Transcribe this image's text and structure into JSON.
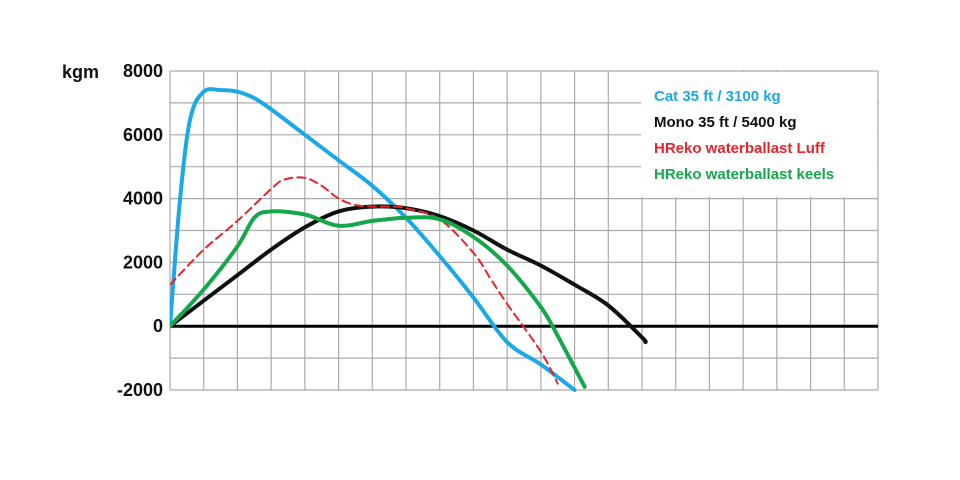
{
  "chart_data": {
    "type": "line",
    "title": "",
    "xlabel": "",
    "ylabel": "kgm",
    "ylim": [
      -2000,
      8000
    ],
    "yticks": [
      8000,
      6000,
      4000,
      2000,
      0,
      -2000
    ],
    "xlim": [
      0,
      21
    ],
    "grid": true,
    "legend_placement": "top-right",
    "series": [
      {
        "name": "Cat 35 ft / 3100 kg",
        "color": "#1aa9e6",
        "dash": false,
        "x": [
          0,
          0.3,
          0.6,
          1,
          1.5,
          2,
          2.5,
          3,
          4,
          5,
          6,
          7,
          8,
          9,
          10,
          11,
          12
        ],
        "y": [
          0,
          4000,
          6500,
          7350,
          7400,
          7350,
          7150,
          6800,
          6000,
          5200,
          4400,
          3400,
          2200,
          900,
          -500,
          -1200,
          -2000
        ]
      },
      {
        "name": "Mono 35 ft / 5400 kg",
        "color": "#111111",
        "dash": false,
        "x": [
          0,
          1,
          2,
          3,
          4,
          5,
          6,
          7,
          8,
          9,
          10,
          11,
          12,
          13,
          14,
          14.1
        ],
        "y": [
          0,
          800,
          1600,
          2400,
          3100,
          3600,
          3750,
          3700,
          3450,
          3000,
          2400,
          1900,
          1300,
          650,
          -350,
          -500
        ]
      },
      {
        "name": "HReko waterballast Luff",
        "color": "#e8242b",
        "dash": true,
        "x": [
          0,
          1,
          2,
          3,
          3.4,
          4,
          4.5,
          5,
          5.5,
          6,
          6.5,
          7,
          8,
          9,
          9.5,
          10,
          11,
          11.5
        ],
        "y": [
          1300,
          2400,
          3300,
          4300,
          4600,
          4650,
          4400,
          4000,
          3800,
          3750,
          3750,
          3700,
          3350,
          2300,
          1500,
          700,
          -800,
          -1800
        ]
      },
      {
        "name": "HReko waterballast keels",
        "color": "#14a84b",
        "dash": false,
        "x": [
          0,
          1,
          2,
          2.5,
          3,
          4,
          5,
          6,
          7,
          8,
          9,
          10,
          11,
          11.5,
          12,
          12.3
        ],
        "y": [
          0,
          1150,
          2500,
          3400,
          3600,
          3500,
          3150,
          3300,
          3400,
          3350,
          2800,
          1900,
          600,
          -300,
          -1300,
          -1900
        ]
      }
    ]
  },
  "colors": {
    "grid": "#aaaaaa",
    "zero_line": "#000000",
    "background": "#ffffff"
  }
}
